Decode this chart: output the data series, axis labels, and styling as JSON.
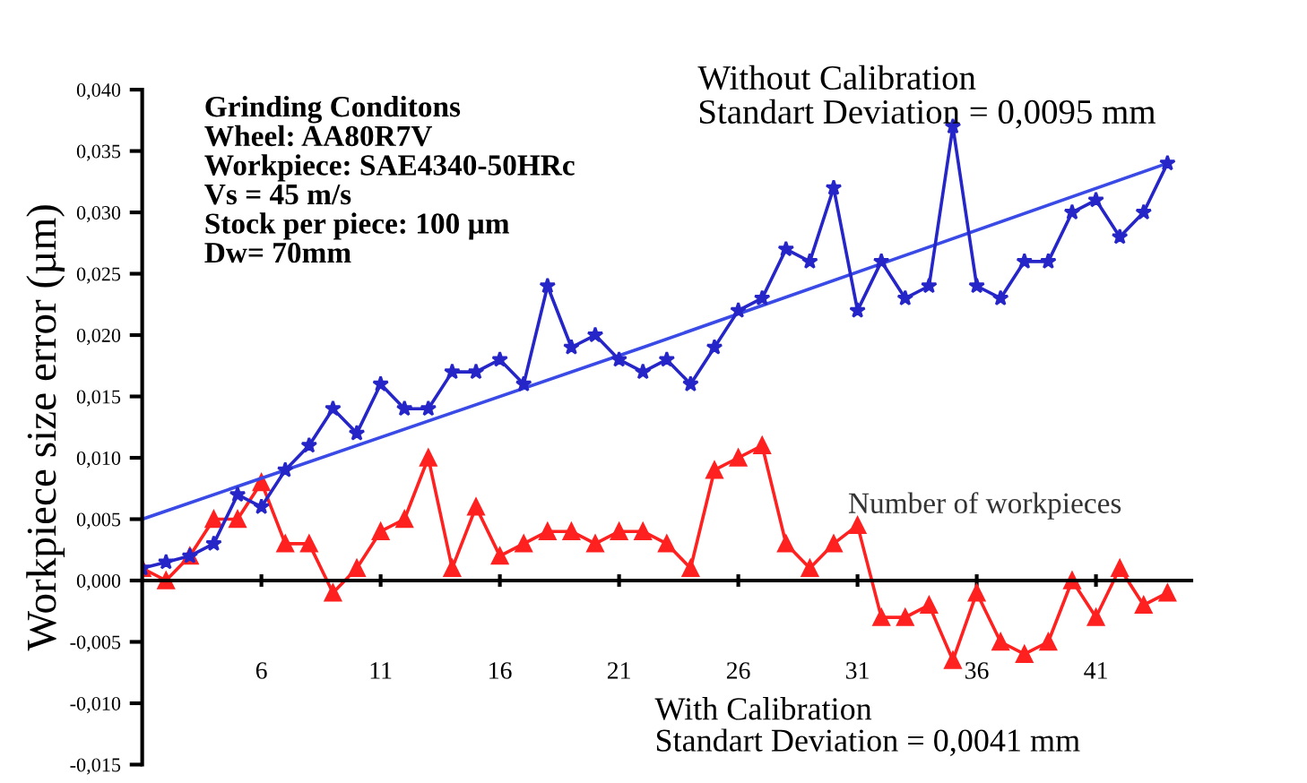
{
  "chart_data": {
    "type": "line",
    "xlabel": "Number of workpieces",
    "ylabel": "Workpiece size error (µm)",
    "annotations": [
      "Grinding Conditons\nWheel: AA80R7V\nWorkpiece: SAE4340-50HRc\nVs = 45 m/s\nStock per piece: 100 µm\nDw= 70mm",
      "Without Calibration\nStandart Deviation = 0,0095 mm",
      "With Calibration\nStandart Deviation = 0,0041 mm"
    ],
    "x": [
      1,
      2,
      3,
      4,
      5,
      6,
      7,
      8,
      9,
      10,
      11,
      12,
      13,
      14,
      15,
      16,
      17,
      18,
      19,
      20,
      21,
      22,
      23,
      24,
      25,
      26,
      27,
      28,
      29,
      30,
      31,
      32,
      33,
      34,
      35,
      36,
      37,
      38,
      39,
      40,
      41,
      42,
      43,
      44
    ],
    "series": [
      {
        "color": "#2626c8",
        "marker": "star",
        "values": [
          0.001,
          0.0015,
          0.002,
          0.003,
          0.007,
          0.006,
          0.009,
          0.011,
          0.014,
          0.012,
          0.016,
          0.014,
          0.014,
          0.017,
          0.017,
          0.018,
          0.016,
          0.024,
          0.019,
          0.02,
          0.018,
          0.017,
          0.018,
          0.016,
          0.019,
          0.022,
          0.023,
          0.027,
          0.026,
          0.032,
          0.022,
          0.026,
          0.023,
          0.024,
          0.037,
          0.024,
          0.023,
          0.026,
          0.026,
          0.03,
          0.031,
          0.028,
          0.03,
          0.034
        ]
      },
      {
        "color": "#ff2020",
        "marker": "triangle",
        "values": [
          0.001,
          0.0,
          0.002,
          0.005,
          0.005,
          0.008,
          0.003,
          0.003,
          -0.001,
          0.001,
          0.004,
          0.005,
          0.01,
          0.001,
          0.006,
          0.002,
          0.003,
          0.004,
          0.004,
          0.003,
          0.004,
          0.004,
          0.003,
          0.001,
          0.009,
          0.01,
          0.011,
          0.003,
          0.001,
          0.003,
          0.0045,
          -0.003,
          -0.003,
          -0.002,
          -0.0065,
          -0.001,
          -0.005,
          -0.006,
          -0.005,
          0.0,
          -0.003,
          0.001,
          -0.002,
          -0.001
        ]
      },
      {
        "color": "#3a4ae6",
        "marker": "none",
        "x": [
          1,
          22,
          44
        ],
        "values": [
          0.005,
          0.019,
          0.034
        ]
      }
    ],
    "xlim": [
      1,
      45
    ],
    "ylim": [
      -0.015,
      0.04
    ],
    "xticks": [
      6,
      11,
      16,
      21,
      26,
      31,
      36,
      41
    ],
    "yticks": [
      {
        "value": -0.015,
        "label": "-0,015"
      },
      {
        "value": -0.01,
        "label": "-0,010"
      },
      {
        "value": -0.005,
        "label": "-0,005"
      },
      {
        "value": 0.0,
        "label": "0,000"
      },
      {
        "value": 0.005,
        "label": "0,005"
      },
      {
        "value": 0.01,
        "label": "0,010"
      },
      {
        "value": 0.015,
        "label": "0,015"
      },
      {
        "value": 0.02,
        "label": "0,020"
      },
      {
        "value": 0.025,
        "label": "0,025"
      },
      {
        "value": 0.03,
        "label": "0,030"
      },
      {
        "value": 0.035,
        "label": "0,035"
      },
      {
        "value": 0.04,
        "label": "0,040"
      }
    ],
    "line_style": "solid"
  }
}
